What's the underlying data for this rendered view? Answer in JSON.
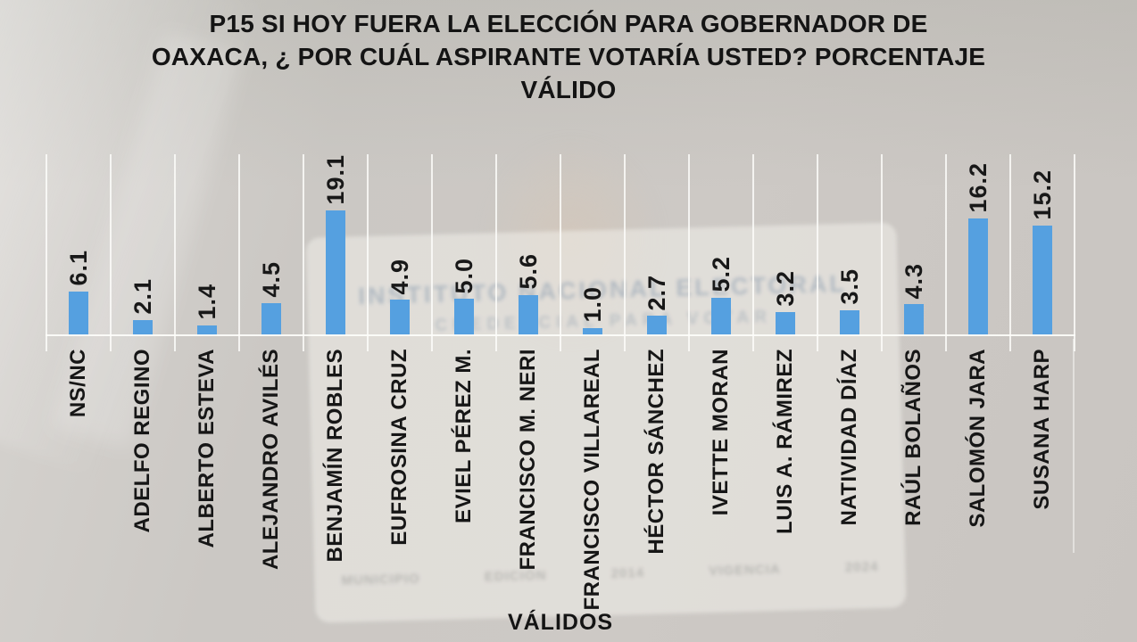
{
  "title_lines": [
    "P15 SI HOY FUERA LA ELECCIÓN PARA GOBERNADOR DE",
    "OAXACA, ¿ POR CUÁL ASPIRANTE VOTARÍA USTED? PORCENTAJE",
    "VÁLIDO"
  ],
  "chart_data": {
    "type": "bar",
    "title": "P15 SI HOY FUERA LA ELECCIÓN PARA GOBERNADOR DE OAXACA, ¿ POR CUÁL ASPIRANTE VOTARÍA USTED? PORCENTAJE VÁLIDO",
    "categories": [
      "NS/NC",
      "ADELFO REGINO",
      "ALBERTO ESTEVA",
      "ALEJANDRO AVILÉS",
      "BENJAMÍN ROBLES",
      "EUFROSINA CRUZ",
      "EVIEL PÉREZ M.",
      "FRANCISCO M. NERI",
      "FRANCISCO VILLAREAL",
      "HÉCTOR SÁNCHEZ",
      "IVETTE MORAN",
      "LUIS A. RÁMIREZ",
      "NATIVIDAD DÍAZ",
      "RAÚL BOLAÑOS",
      "SALOMÓN JARA",
      "SUSANA HARP"
    ],
    "values": [
      6.1,
      2.1,
      1.4,
      4.5,
      19.1,
      4.9,
      5.0,
      5.6,
      1.0,
      2.7,
      5.2,
      3.2,
      3.5,
      4.3,
      16.2,
      15.2
    ],
    "value_labels": [
      "6.1",
      "2.1",
      "1.4",
      "4.5",
      "19.1",
      "4.9",
      "5.0",
      "5.6",
      "1.0",
      "2.7",
      "5.2",
      "3.2",
      "3.5",
      "4.3",
      "16.2",
      "15.2"
    ],
    "xlabel": "VÁLIDOS",
    "ylabel": "",
    "ylim": [
      0,
      25
    ],
    "grid": "vertical category gridlines, white",
    "legend": "none",
    "bar_color": "#55a0e0",
    "labels_rotated_degrees": 90
  },
  "background": {
    "card_line1": "INSTITUTO NACIONAL ELECTORAL",
    "card_line2": "CREDENCIAL PARA VOTAR",
    "card_detail_1": "MUNICIPIO",
    "card_detail_2": "EDICIÓN",
    "card_detail_3": "2014",
    "card_detail_4": "VIGENCIA",
    "card_detail_5": "2024"
  }
}
